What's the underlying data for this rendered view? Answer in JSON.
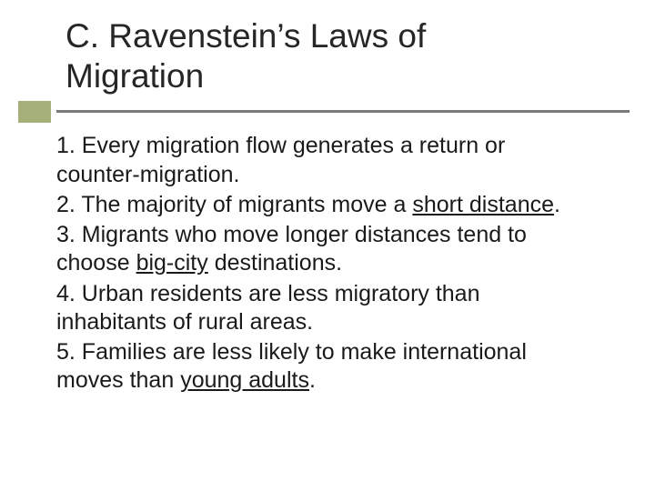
{
  "colors": {
    "background": "#ffffff",
    "title_text": "#262626",
    "body_text": "#1a1a1a",
    "accent_box": "#a6b07a",
    "rule_line": "#7a7a7a"
  },
  "typography": {
    "title_fontsize_pt": 28,
    "body_fontsize_pt": 19,
    "font_family": "Arial"
  },
  "title": {
    "line1": "C. Ravenstein’s Laws of",
    "line2": "Migration"
  },
  "items": {
    "i1_a": "1. Every migration flow generates a return or",
    "i1_b": "counter-migration.",
    "i2_a": "2. The majority of migrants move a ",
    "i2_u": "short distance",
    "i2_b": ".",
    "i3_a": "3. Migrants who move longer distances tend to",
    "i3_b": "choose ",
    "i3_u": "big-city",
    "i3_c": " destinations.",
    "i4_a": "4. Urban residents are less migratory than",
    "i4_b": "inhabitants of rural areas.",
    "i5_a": "5. Families are less likely to make international",
    "i5_b": "moves than ",
    "i5_u": "young adults",
    "i5_c": "."
  }
}
